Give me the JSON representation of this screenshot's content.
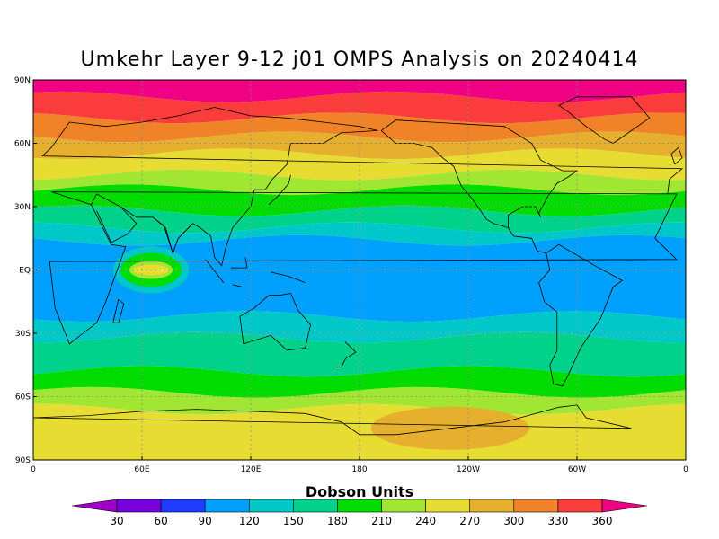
{
  "title": "Umkehr Layer 9-12 j01 OMPS Analysis on 20240414",
  "lat_ticks": [
    "90N",
    "60N",
    "30N",
    "EQ",
    "30S",
    "60S",
    "90S"
  ],
  "lon_ticks": [
    "0",
    "60E",
    "120E",
    "180",
    "120W",
    "60W",
    "0"
  ],
  "colorbar": {
    "title": "Dobson Units",
    "ticks": [
      "30",
      "60",
      "90",
      "120",
      "150",
      "180",
      "210",
      "240",
      "270",
      "300",
      "330",
      "360"
    ],
    "colors": [
      "#a000c8",
      "#7800dc",
      "#1e3cff",
      "#00a0ff",
      "#00c8c8",
      "#00d28c",
      "#00dc00",
      "#a0e632",
      "#e6dc32",
      "#e6af2d",
      "#f08228",
      "#fa3c3c",
      "#f00082"
    ]
  },
  "chart_data": {
    "type": "heatmap",
    "title": "Umkehr Layer 9-12 j01 OMPS Analysis on 20240414",
    "units": "Dobson Units",
    "x_range": [
      0,
      360
    ],
    "y_range": [
      -90,
      90
    ],
    "bands": [
      {
        "lat": [
          82,
          90
        ],
        "du_range": [
          360,
          390
        ]
      },
      {
        "lat": [
          72,
          82
        ],
        "du_range": [
          330,
          360
        ]
      },
      {
        "lat": [
          63,
          72
        ],
        "du_range": [
          300,
          330
        ]
      },
      {
        "lat": [
          55,
          63
        ],
        "du_range": [
          270,
          300
        ]
      },
      {
        "lat": [
          45,
          55
        ],
        "du_range": [
          240,
          270
        ]
      },
      {
        "lat": [
          38,
          45
        ],
        "du_range": [
          210,
          240
        ]
      },
      {
        "lat": [
          28,
          38
        ],
        "du_range": [
          180,
          210
        ]
      },
      {
        "lat": [
          20,
          28
        ],
        "du_range": [
          150,
          180
        ]
      },
      {
        "lat": [
          14,
          20
        ],
        "du_range": [
          120,
          150
        ]
      },
      {
        "lat": [
          -22,
          14
        ],
        "du_range": [
          90,
          120
        ]
      },
      {
        "lat": [
          -32,
          -22
        ],
        "du_range": [
          120,
          150
        ]
      },
      {
        "lat": [
          -48,
          -32
        ],
        "du_range": [
          150,
          180
        ]
      },
      {
        "lat": [
          -58,
          -48
        ],
        "du_range": [
          180,
          210
        ]
      },
      {
        "lat": [
          -66,
          -58
        ],
        "du_range": [
          210,
          240
        ]
      },
      {
        "lat": [
          -90,
          -66
        ],
        "du_range": [
          240,
          270
        ]
      }
    ],
    "features": [
      {
        "desc": "Indian Ocean anomaly",
        "lon": 65,
        "lat": 0,
        "du_range": [
          240,
          270
        ]
      },
      {
        "desc": "Antarctic anomaly",
        "lon": 230,
        "lat": -75,
        "du_range": [
          270,
          300
        ]
      }
    ],
    "grid": true
  }
}
